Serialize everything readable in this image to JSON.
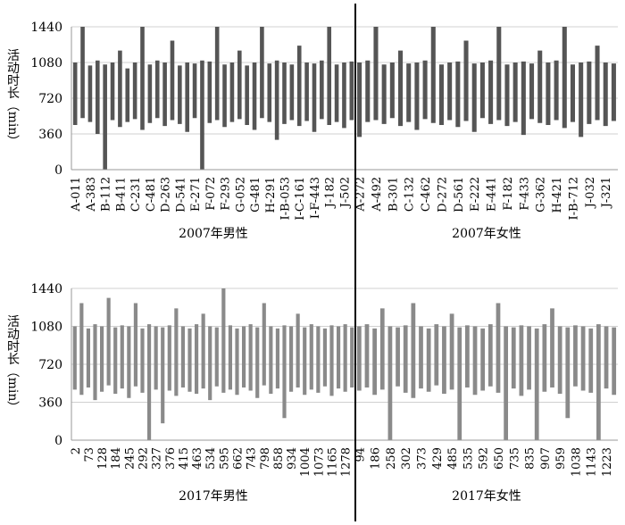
{
  "chart_data": [
    {
      "type": "range",
      "y_label": "活动时长（min）",
      "ylim": [
        0,
        1440
      ],
      "yticks": [
        0,
        360,
        720,
        1080,
        1440
      ],
      "grid": true,
      "color": "#555555",
      "groups": [
        {
          "name": "2007年男性",
          "categories": [
            "A-011",
            null,
            "A-383",
            null,
            "B-112",
            null,
            "B-411",
            null,
            "C-231",
            null,
            "C-481",
            null,
            "D-263",
            null,
            "D-541",
            null,
            "E-271",
            null,
            "F-072",
            null,
            "F-293",
            null,
            "G-052",
            null,
            "G-481",
            null,
            "H-291",
            null,
            "I-B-053",
            null,
            "I-C-161",
            null,
            "I-F-443",
            null,
            "J-182",
            null,
            "J-502",
            null
          ],
          "ranges": [
            [
              450,
              1080
            ],
            [
              520,
              1440
            ],
            [
              480,
              1050
            ],
            [
              360,
              1100
            ],
            [
              0,
              1060
            ],
            [
              500,
              1080
            ],
            [
              430,
              1200
            ],
            [
              480,
              1020
            ],
            [
              510,
              1080
            ],
            [
              400,
              1440
            ],
            [
              470,
              1060
            ],
            [
              520,
              1100
            ],
            [
              440,
              1080
            ],
            [
              500,
              1300
            ],
            [
              460,
              1050
            ],
            [
              380,
              1080
            ],
            [
              520,
              1070
            ],
            [
              0,
              1100
            ],
            [
              470,
              1090
            ],
            [
              500,
              1440
            ],
            [
              430,
              1060
            ],
            [
              480,
              1080
            ],
            [
              510,
              1200
            ],
            [
              450,
              1050
            ],
            [
              400,
              1080
            ],
            [
              520,
              1440
            ],
            [
              480,
              1070
            ],
            [
              300,
              1100
            ],
            [
              460,
              1080
            ],
            [
              500,
              1060
            ],
            [
              440,
              1250
            ],
            [
              490,
              1080
            ],
            [
              380,
              1070
            ],
            [
              510,
              1100
            ],
            [
              450,
              1440
            ],
            [
              480,
              1060
            ],
            [
              420,
              1080
            ],
            [
              500,
              1090
            ]
          ]
        },
        {
          "name": "2007年女性",
          "categories": [
            "A-272",
            null,
            "A-492",
            null,
            "B-301",
            null,
            "C-132",
            null,
            "C-462",
            null,
            "D-272",
            null,
            "D-561",
            null,
            "E-222",
            null,
            "E-441",
            null,
            "F-182",
            null,
            "F-433",
            null,
            "G-362",
            null,
            "H-421",
            null,
            "I-B-712",
            null,
            "J-032",
            null,
            "J-321",
            null
          ],
          "ranges": [
            [
              330,
              1080
            ],
            [
              480,
              1100
            ],
            [
              500,
              1440
            ],
            [
              460,
              1060
            ],
            [
              520,
              1080
            ],
            [
              440,
              1200
            ],
            [
              480,
              1070
            ],
            [
              400,
              1080
            ],
            [
              510,
              1100
            ],
            [
              470,
              1440
            ],
            [
              450,
              1060
            ],
            [
              500,
              1080
            ],
            [
              430,
              1090
            ],
            [
              490,
              1300
            ],
            [
              380,
              1070
            ],
            [
              520,
              1080
            ],
            [
              460,
              1100
            ],
            [
              500,
              1440
            ],
            [
              440,
              1060
            ],
            [
              480,
              1080
            ],
            [
              350,
              1090
            ],
            [
              510,
              1070
            ],
            [
              470,
              1200
            ],
            [
              450,
              1080
            ],
            [
              500,
              1100
            ],
            [
              420,
              1440
            ],
            [
              480,
              1060
            ],
            [
              330,
              1080
            ],
            [
              460,
              1090
            ],
            [
              500,
              1250
            ],
            [
              440,
              1080
            ],
            [
              490,
              1070
            ]
          ]
        }
      ]
    },
    {
      "type": "range",
      "y_label": "活动时长（min）",
      "ylim": [
        0,
        1440
      ],
      "yticks": [
        0,
        360,
        720,
        1080,
        1440
      ],
      "grid": true,
      "color": "#8a8a8a",
      "groups": [
        {
          "name": "2017年男性",
          "categories": [
            "2",
            null,
            "73",
            null,
            "128",
            null,
            "184",
            null,
            "245",
            null,
            "292",
            null,
            "327",
            null,
            "376",
            null,
            "415",
            null,
            "463",
            null,
            "534",
            null,
            "595",
            null,
            "662",
            null,
            "743",
            null,
            "798",
            null,
            "858",
            null,
            "934",
            null,
            "1004",
            null,
            "1073",
            null,
            "1165",
            null,
            "1278",
            null
          ],
          "ranges": [
            [
              480,
              1080
            ],
            [
              430,
              1300
            ],
            [
              500,
              1060
            ],
            [
              380,
              1100
            ],
            [
              460,
              1080
            ],
            [
              520,
              1350
            ],
            [
              440,
              1070
            ],
            [
              490,
              1090
            ],
            [
              400,
              1080
            ],
            [
              510,
              1300
            ],
            [
              450,
              1060
            ],
            [
              0,
              1100
            ],
            [
              480,
              1080
            ],
            [
              160,
              1070
            ],
            [
              470,
              1090
            ],
            [
              420,
              1250
            ],
            [
              500,
              1080
            ],
            [
              460,
              1060
            ],
            [
              440,
              1100
            ],
            [
              490,
              1200
            ],
            [
              380,
              1080
            ],
            [
              510,
              1070
            ],
            [
              450,
              1440
            ],
            [
              480,
              1090
            ],
            [
              430,
              1060
            ],
            [
              500,
              1080
            ],
            [
              470,
              1100
            ],
            [
              400,
              1070
            ],
            [
              520,
              1300
            ],
            [
              440,
              1080
            ],
            [
              490,
              1060
            ],
            [
              210,
              1090
            ],
            [
              460,
              1080
            ],
            [
              500,
              1200
            ],
            [
              430,
              1070
            ],
            [
              480,
              1100
            ],
            [
              450,
              1080
            ],
            [
              510,
              1060
            ],
            [
              420,
              1090
            ],
            [
              490,
              1080
            ],
            [
              460,
              1100
            ],
            [
              500,
              1070
            ]
          ]
        },
        {
          "name": "2017年女性",
          "categories": [
            "94",
            null,
            "186",
            null,
            "258",
            null,
            "302",
            null,
            "373",
            null,
            "429",
            null,
            "485",
            null,
            "535",
            null,
            "592",
            null,
            "650",
            null,
            "735",
            null,
            "835",
            null,
            "907",
            null,
            "959",
            null,
            "1038",
            null,
            "1143",
            null,
            "1223",
            null
          ],
          "ranges": [
            [
              470,
              1080
            ],
            [
              500,
              1100
            ],
            [
              430,
              1060
            ],
            [
              480,
              1250
            ],
            [
              0,
              1080
            ],
            [
              510,
              1070
            ],
            [
              450,
              1090
            ],
            [
              400,
              1300
            ],
            [
              490,
              1080
            ],
            [
              460,
              1060
            ],
            [
              520,
              1100
            ],
            [
              440,
              1080
            ],
            [
              480,
              1200
            ],
            [
              0,
              1070
            ],
            [
              500,
              1090
            ],
            [
              430,
              1080
            ],
            [
              470,
              1060
            ],
            [
              510,
              1100
            ],
            [
              450,
              1300
            ],
            [
              0,
              1080
            ],
            [
              490,
              1070
            ],
            [
              420,
              1090
            ],
            [
              480,
              1080
            ],
            [
              0,
              1060
            ],
            [
              460,
              1100
            ],
            [
              500,
              1250
            ],
            [
              440,
              1080
            ],
            [
              210,
              1070
            ],
            [
              510,
              1090
            ],
            [
              470,
              1080
            ],
            [
              450,
              1060
            ],
            [
              0,
              1100
            ],
            [
              490,
              1080
            ],
            [
              430,
              1070
            ]
          ]
        }
      ]
    }
  ]
}
